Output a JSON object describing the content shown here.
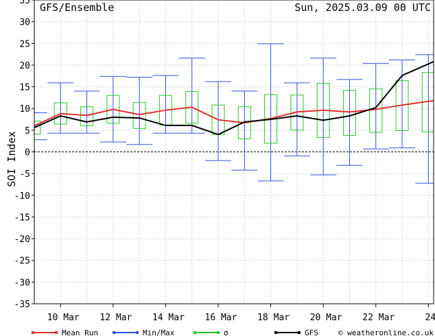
{
  "chart_data": {
    "type": "line",
    "title": "GFS/Ensemble",
    "date_label": "Sun, 2025.03.09   00 UTC",
    "ylabel": "SOI Index",
    "ylim": [
      -35,
      35
    ],
    "yticks": [
      -35,
      -30,
      -25,
      -20,
      -15,
      -10,
      -5,
      0,
      5,
      10,
      15,
      20,
      25,
      30,
      35
    ],
    "x_range_days": [
      9.0,
      24.2
    ],
    "xticks": [
      {
        "label": "10 Mar",
        "day": 10
      },
      {
        "label": "12 Mar",
        "day": 12
      },
      {
        "label": "14 Mar",
        "day": 14
      },
      {
        "label": "16 Mar",
        "day": 16
      },
      {
        "label": "18 Mar",
        "day": 18
      },
      {
        "label": "20 Mar",
        "day": 20
      },
      {
        "label": "22 Mar",
        "day": 22
      },
      {
        "label": "24",
        "day": 24
      }
    ],
    "grid": true,
    "legend_position": "bottom",
    "series": [
      {
        "name": "Mean Run",
        "color": "#e03030",
        "x": [
          9.0,
          10.0,
          11.0,
          12.0,
          13.0,
          14.0,
          15.0,
          16.0,
          17.0,
          18.0,
          19.0,
          20.0,
          21.0,
          22.0,
          23.0,
          24.2
        ],
        "values": [
          6.0,
          8.8,
          8.4,
          9.8,
          8.6,
          9.6,
          10.3,
          7.4,
          6.7,
          7.7,
          9.2,
          9.6,
          9.2,
          9.8,
          10.8,
          11.8
        ]
      },
      {
        "name": "GFS",
        "color": "#000000",
        "x": [
          9.0,
          10.0,
          11.0,
          12.0,
          13.0,
          14.0,
          15.0,
          16.0,
          17.0,
          18.0,
          19.0,
          20.0,
          21.0,
          22.0,
          23.0,
          24.2
        ],
        "values": [
          5.6,
          8.3,
          6.9,
          8.0,
          7.8,
          6.1,
          6.1,
          4.0,
          6.9,
          7.5,
          8.3,
          7.3,
          8.3,
          10.2,
          17.6,
          20.8
        ]
      }
    ],
    "minmax": {
      "name": "Min/Max",
      "color": "#3050e0",
      "x": [
        9.0,
        10.0,
        11.0,
        12.0,
        13.0,
        14.0,
        15.0,
        16.0,
        17.0,
        18.0,
        19.0,
        20.0,
        21.0,
        22.0,
        23.0,
        24.0
      ],
      "min": [
        2.8,
        4.3,
        4.3,
        2.3,
        1.7,
        4.3,
        4.3,
        -2.0,
        -4.2,
        -6.7,
        -0.9,
        -5.3,
        -3.1,
        0.7,
        0.9,
        -7.2
      ],
      "max": [
        9.0,
        15.9,
        14.0,
        17.4,
        17.2,
        17.6,
        21.6,
        16.2,
        14.0,
        24.9,
        15.9,
        21.6,
        16.7,
        20.4,
        21.2,
        22.4
      ]
    },
    "sigma": {
      "name": "σ",
      "color": "#22cc22",
      "x": [
        9.0,
        10.0,
        11.0,
        12.0,
        13.0,
        14.0,
        15.0,
        16.0,
        17.0,
        18.0,
        19.0,
        20.0,
        21.0,
        22.0,
        23.0,
        24.0
      ],
      "low": [
        4.1,
        6.4,
        6.0,
        6.6,
        5.4,
        6.2,
        6.6,
        4.0,
        3.0,
        2.0,
        5.0,
        3.3,
        3.8,
        4.5,
        4.9,
        4.6
      ],
      "high": [
        7.1,
        11.3,
        10.4,
        13.0,
        11.4,
        13.0,
        13.9,
        10.8,
        10.4,
        13.2,
        13.1,
        15.8,
        14.2,
        14.5,
        16.4,
        18.3
      ]
    },
    "legend": [
      {
        "label": "Mean Run",
        "color": "#e03030"
      },
      {
        "label": "Min/Max",
        "color": "#3050e0"
      },
      {
        "label": "σ",
        "color": "#22cc22"
      },
      {
        "label": "GFS",
        "color": "#000000"
      }
    ],
    "credit": "© weatheronline.co.uk"
  }
}
